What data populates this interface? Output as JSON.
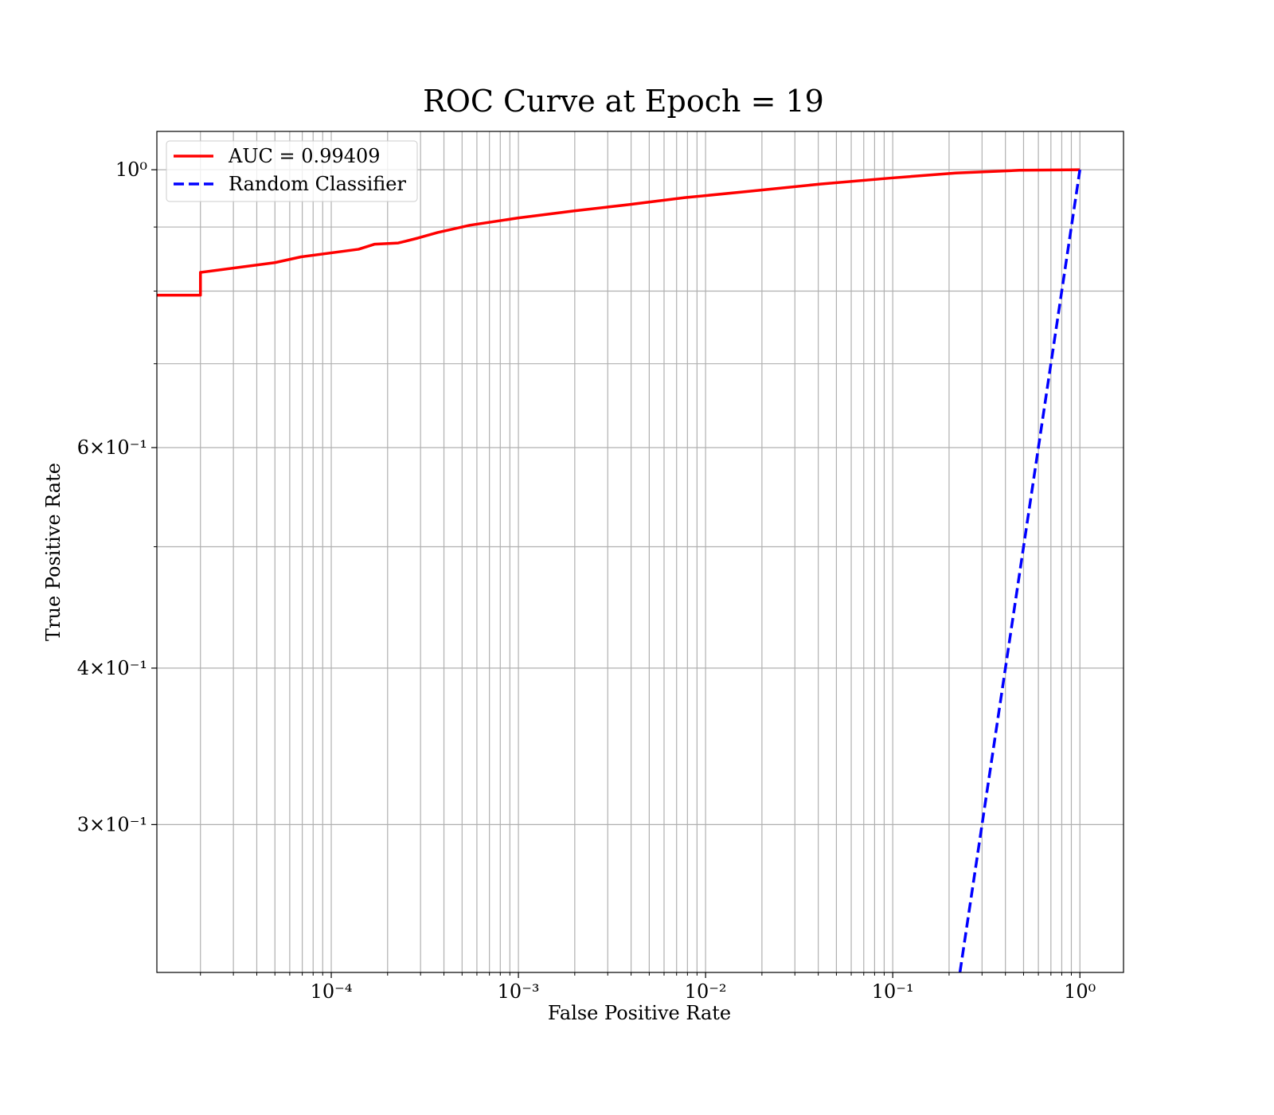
{
  "chart_data": {
    "type": "line",
    "title": "ROC Curve at Epoch = 19",
    "x_label": "False Positive Rate",
    "y_label": "True Positive Rate",
    "xscale": "log",
    "yscale": "log",
    "grid": true,
    "legend": "upper left",
    "xlim": [
      1.17e-05,
      1.71
    ],
    "ylim": [
      0.2286,
      1.073
    ],
    "xticks": [
      {
        "value": 0.0001,
        "label": "10⁻⁴"
      },
      {
        "value": 0.001,
        "label": "10⁻³"
      },
      {
        "value": 0.01,
        "label": "10⁻²"
      },
      {
        "value": 0.1,
        "label": "10⁻¹"
      },
      {
        "value": 1,
        "label": "10⁰"
      }
    ],
    "xminorticks": [
      2e-05,
      3e-05,
      4e-05,
      5e-05,
      6e-05,
      7e-05,
      8e-05,
      9e-05,
      0.0002,
      0.0003,
      0.0004,
      0.0005,
      0.0006,
      0.0007,
      0.0008,
      0.0009,
      0.002,
      0.003,
      0.004,
      0.005,
      0.006,
      0.007,
      0.008,
      0.009,
      0.02,
      0.03,
      0.04,
      0.05,
      0.06,
      0.07,
      0.08,
      0.09,
      0.2,
      0.3,
      0.4,
      0.5,
      0.6,
      0.7,
      0.8,
      0.9
    ],
    "yticks": [
      {
        "value": 1,
        "label": "10⁰"
      },
      {
        "value": 0.6,
        "label": "6×10⁻¹"
      },
      {
        "value": 0.4,
        "label": "4×10⁻¹"
      },
      {
        "value": 0.3,
        "label": "3×10⁻¹"
      }
    ],
    "yminorticks": [
      0.5,
      0.7,
      0.8,
      0.9
    ],
    "series": [
      {
        "name": "AUC = 0.99409",
        "color": "#ff0000",
        "style": "solid",
        "x": [
          1.17e-05,
          2e-05,
          2e-05,
          5e-05,
          6.9e-05,
          0.00014,
          0.00017,
          0.000228,
          0.000291,
          0.00037,
          0.00055,
          0.00099,
          0.00197,
          0.0039,
          0.00775,
          0.017,
          0.041,
          0.099,
          0.217,
          0.475,
          1
        ],
        "values": [
          0.794,
          0.794,
          0.828,
          0.843,
          0.852,
          0.864,
          0.872,
          0.874,
          0.882,
          0.891,
          0.903,
          0.915,
          0.927,
          0.938,
          0.95,
          0.961,
          0.974,
          0.985,
          0.994,
          0.999,
          1
        ]
      },
      {
        "name": "Random Classifier",
        "color": "#0000ff",
        "style": "dashed",
        "x": [
          0.2286,
          1
        ],
        "values": [
          0.2286,
          1
        ]
      }
    ]
  }
}
